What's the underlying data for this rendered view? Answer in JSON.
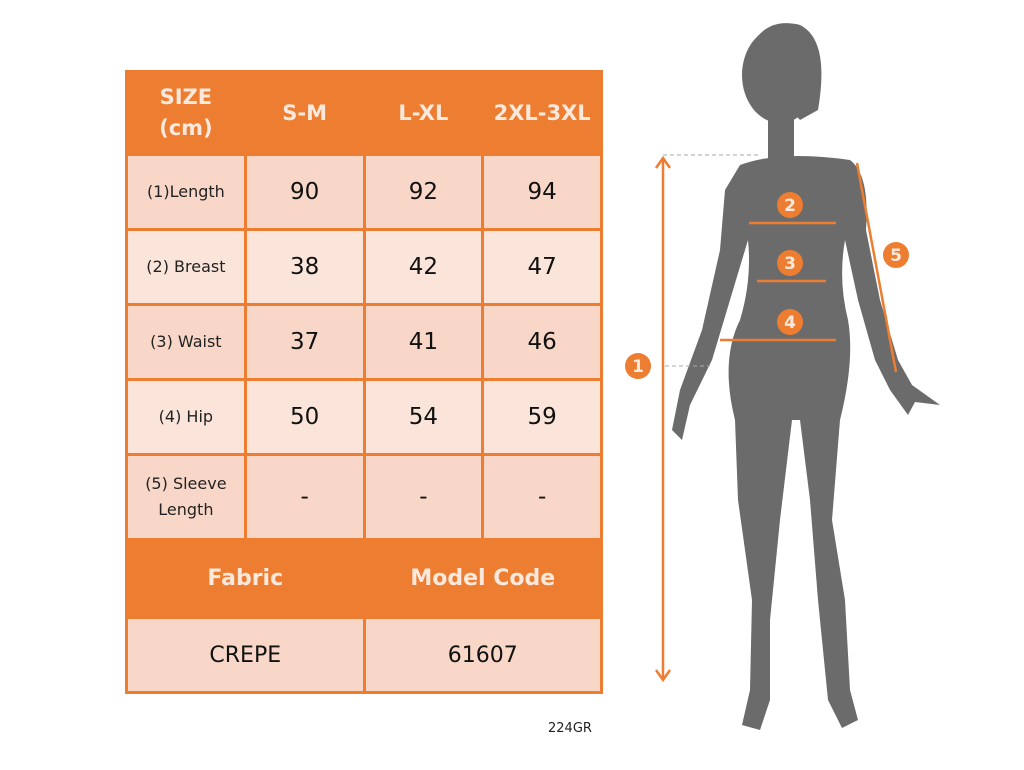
{
  "table": {
    "header": [
      "SIZE\n(cm)",
      "S-M",
      "L-XL",
      "2XL-3XL"
    ],
    "rows": [
      {
        "label": "(1)Length",
        "values": [
          "90",
          "92",
          "94"
        ]
      },
      {
        "label": "(2) Breast",
        "values": [
          "38",
          "42",
          "47"
        ]
      },
      {
        "label": "(3) Waist",
        "values": [
          "37",
          "41",
          "46"
        ]
      },
      {
        "label": "(4) Hip",
        "values": [
          "50",
          "54",
          "59"
        ]
      },
      {
        "label": "(5) Sleeve\nLength",
        "values": [
          "-",
          "-",
          "-"
        ]
      }
    ],
    "fabric_label": "Fabric",
    "model_code_label": "Model Code",
    "fabric": "CREPE",
    "model_code": "61607"
  },
  "code": "224GR",
  "figure": {
    "markers": [
      "1",
      "2",
      "3",
      "4",
      "5"
    ]
  },
  "colors": {
    "accent": "#ED7D31",
    "cell": "#F8D7C8",
    "cell_alt": "#FBE5DA",
    "silhouette": "#6B6B6B"
  }
}
